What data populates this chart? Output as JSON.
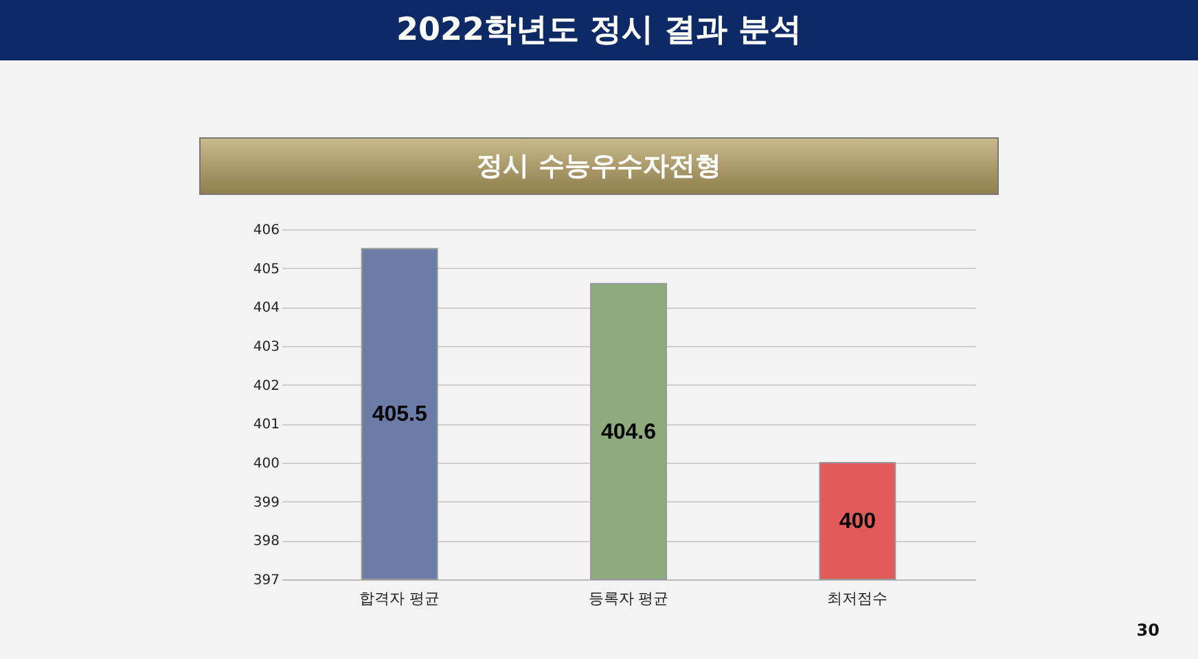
{
  "chart_data": {
    "type": "bar",
    "title": "2022학년도 정시 결과 분석",
    "subtitle": "정시 수능우수자전형",
    "categories": [
      "합격자 평균",
      "등록자 평균",
      "최저점수"
    ],
    "values": [
      405.5,
      404.6,
      400
    ],
    "colors": [
      "#6b7ca6",
      "#8dab7c",
      "#e35a5a"
    ],
    "ylim": [
      397,
      406
    ],
    "yticks": [
      397,
      398,
      399,
      400,
      401,
      402,
      403,
      404,
      405,
      406
    ],
    "grid": "y",
    "data_labels": true,
    "annotations": [
      "30"
    ]
  }
}
